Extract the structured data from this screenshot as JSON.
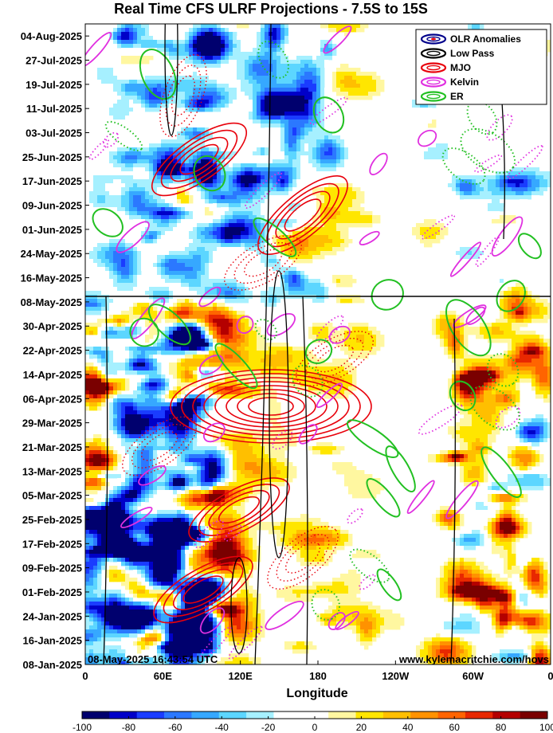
{
  "chart_data": {
    "type": "heatmap",
    "title": "Real Time CFS ULRF Projections - 7.5S to 15S",
    "xlabel": "Longitude",
    "x_ticks": [
      "0",
      "60E",
      "120E",
      "180",
      "120W",
      "60W",
      "0"
    ],
    "x_tick_degrees": [
      0,
      60,
      120,
      180,
      240,
      300,
      360
    ],
    "xlim": [
      0,
      360
    ],
    "y_ticks": [
      "04-Aug-2025",
      "27-Jul-2025",
      "19-Jul-2025",
      "11-Jul-2025",
      "03-Jul-2025",
      "25-Jun-2025",
      "17-Jun-2025",
      "09-Jun-2025",
      "01-Jun-2025",
      "24-May-2025",
      "16-May-2025",
      "08-May-2025",
      "30-Apr-2025",
      "22-Apr-2025",
      "14-Apr-2025",
      "06-Apr-2025",
      "29-Mar-2025",
      "21-Mar-2025",
      "13-Mar-2025",
      "05-Mar-2025",
      "25-Feb-2025",
      "17-Feb-2025",
      "09-Feb-2025",
      "01-Feb-2025",
      "24-Jan-2025",
      "16-Jan-2025",
      "08-Jan-2025"
    ],
    "ylim": [
      "08-Jan-2025",
      "08-Aug-2025"
    ],
    "current_date_line": "08-May-2025",
    "legend": {
      "placement": "top-right",
      "entries": [
        {
          "name": "OLR Anomalies",
          "color": "#00008b"
        },
        {
          "name": "Low Pass",
          "color": "#000000"
        },
        {
          "name": "MJO",
          "color": "#e8000b"
        },
        {
          "name": "Kelvin",
          "color": "#e030e0"
        },
        {
          "name": "ER",
          "color": "#22c022"
        }
      ]
    },
    "colorbar": {
      "ticks": [
        -100,
        -80,
        -60,
        -40,
        -20,
        0,
        20,
        40,
        60,
        80,
        100
      ],
      "colors": [
        "#00006e",
        "#0000c8",
        "#1a3cff",
        "#2b78ff",
        "#36a8ff",
        "#5cd6ff",
        "#a6f0ff",
        "#ffffff",
        "#ffffff",
        "#fff7a0",
        "#ffe600",
        "#ffbf00",
        "#ff9200",
        "#ff6400",
        "#e82800",
        "#b40000",
        "#7a0000"
      ]
    },
    "timestamp": "08-May-2025 16:43:54 UTC",
    "source": "www.kylemacritchie.com/hovs"
  }
}
